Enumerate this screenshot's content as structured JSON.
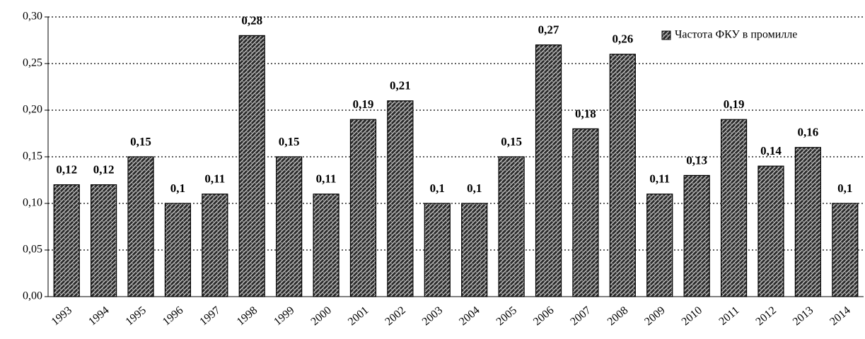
{
  "chart_data": {
    "type": "bar",
    "categories": [
      "1993",
      "1994",
      "1995",
      "1996",
      "1997",
      "1998",
      "1999",
      "2000",
      "2001",
      "2002",
      "2003",
      "2004",
      "2005",
      "2006",
      "2007",
      "2008",
      "2009",
      "2010",
      "2011",
      "2012",
      "2013",
      "2014"
    ],
    "series": [
      {
        "name": "Частота ФКУ в промилле",
        "color": "#2b2b2b",
        "values": [
          0.12,
          0.12,
          0.15,
          0.1,
          0.11,
          0.28,
          0.15,
          0.11,
          0.19,
          0.21,
          0.1,
          0.1,
          0.15,
          0.27,
          0.18,
          0.26,
          0.11,
          0.13,
          0.19,
          0.14,
          0.16,
          0.1
        ],
        "value_labels": [
          "0,12",
          "0,12",
          "0,15",
          "0,1",
          "0,11",
          "0,28",
          "0,15",
          "0,11",
          "0,19",
          "0,21",
          "0,1",
          "0,1",
          "0,15",
          "0,27",
          "0,18",
          "0,26",
          "0,11",
          "0,13",
          "0,19",
          "0,14",
          "0,16",
          "0,1"
        ]
      }
    ],
    "ylim": [
      0,
      0.3
    ],
    "yticks": [
      {
        "value": 0,
        "label": "0,00"
      },
      {
        "value": 0.05,
        "label": "0,05"
      },
      {
        "value": 0.1,
        "label": "0,10"
      },
      {
        "value": 0.15,
        "label": "0,15"
      },
      {
        "value": 0.2,
        "label": "0,20"
      },
      {
        "value": 0.25,
        "label": "0,25"
      },
      {
        "value": 0.3,
        "label": "0,30"
      }
    ],
    "grid": true,
    "legend": "upper right"
  }
}
